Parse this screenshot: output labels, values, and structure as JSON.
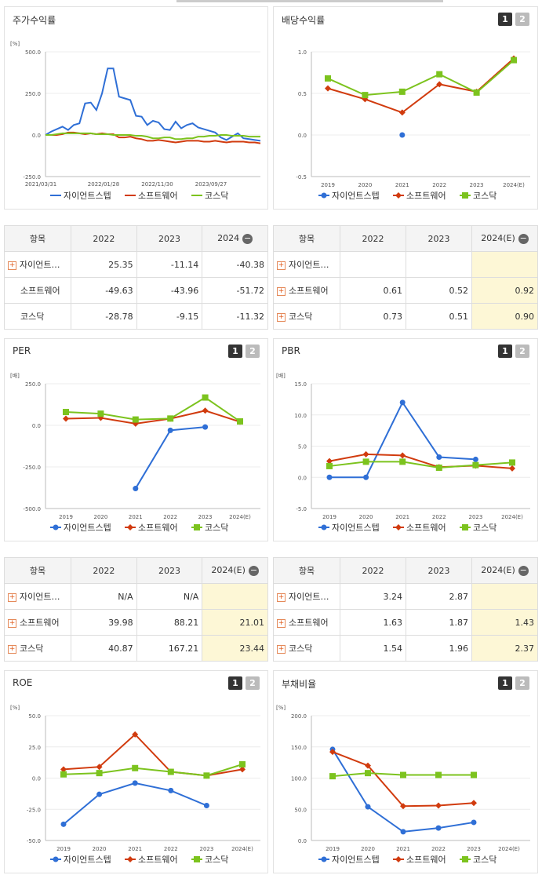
{
  "legend": {
    "s1": "자이언트스텝",
    "s2": "소프트웨어",
    "s3": "코스닥"
  },
  "colors": {
    "s1": "#2f6fd6",
    "s2": "#d13b0e",
    "s3": "#7cc31e"
  },
  "panels": {
    "stock": {
      "title": "주가수익률",
      "unit": "[%]"
    },
    "div": {
      "title": "배당수익률"
    },
    "per": {
      "title": "PER",
      "unit": "[배]"
    },
    "pbr": {
      "title": "PBR",
      "unit": "[배]"
    },
    "roe": {
      "title": "ROE",
      "unit": "[%]"
    },
    "debt": {
      "title": "부채비율",
      "unit": "[%]"
    }
  },
  "buttons": {
    "b1": "1",
    "b2": "2"
  },
  "tables": {
    "stock": {
      "head": [
        "항목",
        "2022",
        "2023",
        "2024"
      ],
      "rows": [
        [
          "자이언트…",
          "25.35",
          "-11.14",
          "-40.38"
        ],
        [
          "소프트웨어",
          "-49.63",
          "-43.96",
          "-51.72"
        ],
        [
          "코스닥",
          "-28.78",
          "-9.15",
          "-11.32"
        ]
      ]
    },
    "div": {
      "head": [
        "항목",
        "2022",
        "2023",
        "2024(E)"
      ],
      "rows": [
        [
          "자이언트…",
          "",
          "",
          ""
        ],
        [
          "소프트웨어",
          "0.61",
          "0.52",
          "0.92"
        ],
        [
          "코스닥",
          "0.73",
          "0.51",
          "0.90"
        ]
      ]
    },
    "per": {
      "head": [
        "항목",
        "2022",
        "2023",
        "2024(E)"
      ],
      "rows": [
        [
          "자이언트…",
          "N/A",
          "N/A",
          ""
        ],
        [
          "소프트웨어",
          "39.98",
          "88.21",
          "21.01"
        ],
        [
          "코스닥",
          "40.87",
          "167.21",
          "23.44"
        ]
      ]
    },
    "pbr": {
      "head": [
        "항목",
        "2022",
        "2023",
        "2024(E)"
      ],
      "rows": [
        [
          "자이언트…",
          "3.24",
          "2.87",
          ""
        ],
        [
          "소프트웨어",
          "1.63",
          "1.87",
          "1.43"
        ],
        [
          "코스닥",
          "1.54",
          "1.96",
          "2.37"
        ]
      ]
    }
  },
  "chart_data": [
    {
      "id": "stock",
      "type": "line",
      "title": "주가수익률",
      "ylabel": "[%]",
      "ylim": [
        -250,
        500
      ],
      "yticks": [
        "500.0",
        "250.0",
        "0.0",
        "-250.0"
      ],
      "xticks": [
        "2021/03/31",
        "2022/01/28",
        "2022/11/30",
        "2023/09/27"
      ],
      "series": [
        {
          "name": "자이언트스텝",
          "values": [
            0,
            20,
            35,
            50,
            30,
            60,
            70,
            190,
            195,
            150,
            250,
            400,
            400,
            230,
            220,
            210,
            115,
            110,
            60,
            85,
            75,
            35,
            30,
            80,
            40,
            60,
            70,
            45,
            35,
            25,
            15,
            -15,
            -30,
            -10,
            10,
            -20,
            -25,
            -30,
            -35
          ]
        },
        {
          "name": "소프트웨어",
          "values": [
            0,
            0,
            0,
            5,
            15,
            15,
            10,
            5,
            10,
            5,
            10,
            5,
            5,
            -15,
            -15,
            -10,
            -20,
            -25,
            -35,
            -35,
            -30,
            -35,
            -40,
            -45,
            -40,
            -35,
            -35,
            -35,
            -40,
            -40,
            -35,
            -40,
            -45,
            -40,
            -40,
            -40,
            -45,
            -45,
            -50
          ]
        },
        {
          "name": "코스닥",
          "values": [
            0,
            0,
            5,
            10,
            10,
            10,
            10,
            10,
            10,
            5,
            5,
            5,
            0,
            0,
            0,
            0,
            -5,
            -5,
            -10,
            -20,
            -20,
            -15,
            -15,
            -25,
            -25,
            -20,
            -20,
            -10,
            -10,
            -5,
            -5,
            0,
            0,
            -5,
            -5,
            -5,
            -10,
            -10,
            -10
          ]
        }
      ]
    },
    {
      "id": "div",
      "type": "line",
      "title": "배당수익률",
      "ylim": [
        -0.5,
        1.0
      ],
      "yticks": [
        "1.0",
        "0.5",
        "0.0",
        "-0.5"
      ],
      "categories": [
        "2019",
        "2020",
        "2021",
        "2022",
        "2023",
        "2024(E)"
      ],
      "series": [
        {
          "name": "자이언트스텝",
          "values": [
            null,
            null,
            0.0,
            null,
            null,
            null
          ]
        },
        {
          "name": "소프트웨어",
          "values": [
            0.56,
            0.43,
            0.27,
            0.61,
            0.52,
            0.92
          ]
        },
        {
          "name": "코스닥",
          "values": [
            0.68,
            0.48,
            0.52,
            0.73,
            0.51,
            0.9
          ]
        }
      ]
    },
    {
      "id": "per",
      "type": "line",
      "title": "PER",
      "ylabel": "[배]",
      "ylim": [
        -500,
        250
      ],
      "yticks": [
        "250.0",
        "0.0",
        "-250.0",
        "-500.0"
      ],
      "categories": [
        "2019",
        "2020",
        "2021",
        "2022",
        "2023",
        "2024(E)"
      ],
      "series": [
        {
          "name": "자이언트스텝",
          "values": [
            null,
            null,
            -380,
            -30,
            -10,
            null
          ]
        },
        {
          "name": "소프트웨어",
          "values": [
            40,
            45,
            10,
            39.98,
            88.21,
            21.01
          ]
        },
        {
          "name": "코스닥",
          "values": [
            80,
            70,
            35,
            40.87,
            167.21,
            23.44
          ]
        }
      ]
    },
    {
      "id": "pbr",
      "type": "line",
      "title": "PBR",
      "ylabel": "[배]",
      "ylim": [
        -5,
        15
      ],
      "yticks": [
        "15.0",
        "10.0",
        "5.0",
        "0.0",
        "-5.0"
      ],
      "categories": [
        "2019",
        "2020",
        "2021",
        "2022",
        "2023",
        "2024(E)"
      ],
      "series": [
        {
          "name": "자이언트스텝",
          "values": [
            0.0,
            0.0,
            12.0,
            3.24,
            2.87,
            null
          ]
        },
        {
          "name": "소프트웨어",
          "values": [
            2.6,
            3.7,
            3.5,
            1.63,
            1.87,
            1.43
          ]
        },
        {
          "name": "코스닥",
          "values": [
            1.8,
            2.5,
            2.5,
            1.54,
            1.96,
            2.37
          ]
        }
      ]
    },
    {
      "id": "roe",
      "type": "line",
      "title": "ROE",
      "ylabel": "[%]",
      "ylim": [
        -50,
        50
      ],
      "yticks": [
        "50.0",
        "25.0",
        "0.0",
        "-25.0",
        "-50.0"
      ],
      "categories": [
        "2019",
        "2020",
        "2021",
        "2022",
        "2023",
        "2024(E)"
      ],
      "series": [
        {
          "name": "자이언트스텝",
          "values": [
            -37,
            -13,
            -4,
            -10,
            -22,
            null
          ]
        },
        {
          "name": "소프트웨어",
          "values": [
            7,
            9,
            35,
            5,
            2,
            7
          ]
        },
        {
          "name": "코스닥",
          "values": [
            3,
            4,
            8,
            5,
            2,
            11
          ]
        }
      ]
    },
    {
      "id": "debt",
      "type": "line",
      "title": "부채비율",
      "ylabel": "[%]",
      "ylim": [
        0,
        200
      ],
      "yticks": [
        "200.0",
        "150.0",
        "100.0",
        "50.0",
        "0.0"
      ],
      "categories": [
        "2019",
        "2020",
        "2021",
        "2022",
        "2023",
        "2024(E)"
      ],
      "series": [
        {
          "name": "자이언트스텝",
          "values": [
            146,
            54,
            14,
            20,
            29,
            null
          ]
        },
        {
          "name": "소프트웨어",
          "values": [
            142,
            120,
            55,
            56,
            60,
            null
          ]
        },
        {
          "name": "코스닥",
          "values": [
            103,
            108,
            105,
            105,
            105,
            null
          ]
        }
      ]
    }
  ]
}
